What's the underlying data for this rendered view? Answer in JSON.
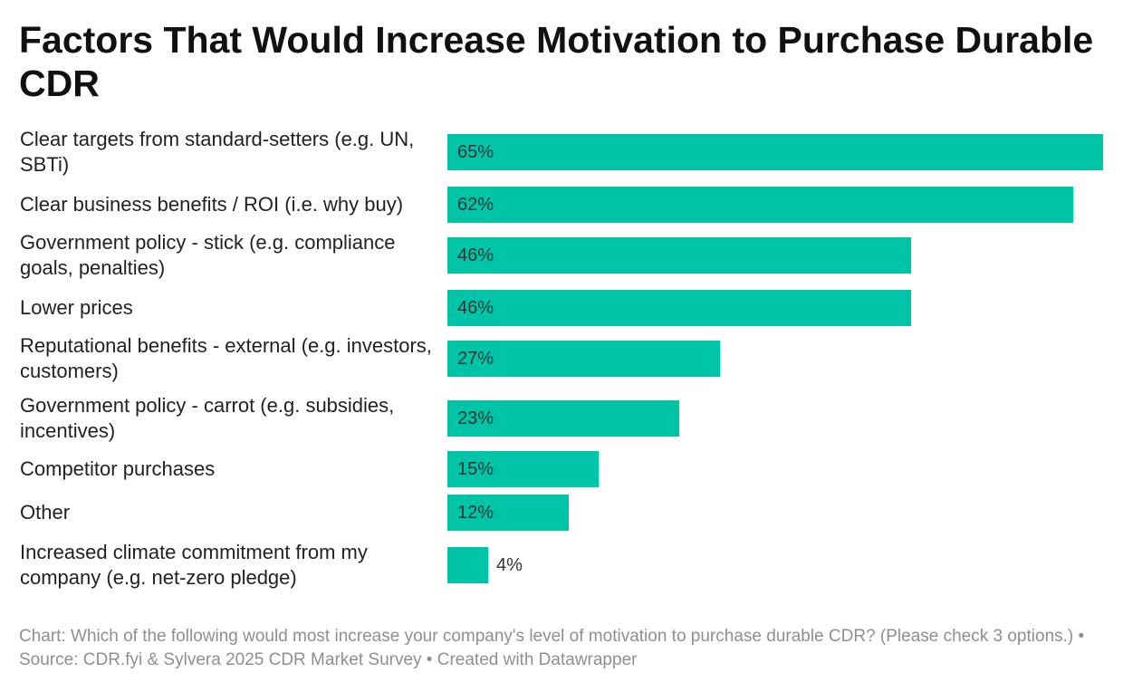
{
  "chart_data": {
    "type": "bar",
    "orientation": "horizontal",
    "title": "Factors That Would Increase Motivation to Purchase Durable CDR",
    "categories": [
      "Clear targets from standard-setters (e.g. UN, SBTi)",
      "Clear business benefits / ROI (i.e. why buy)",
      "Government policy - stick (e.g. compliance goals, penalties)",
      "Lower prices",
      "Reputational benefits - external (e.g. investors, customers)",
      "Government policy - carrot (e.g. subsidies, incentives)",
      "Competitor purchases",
      "Other",
      "Increased climate commitment from my company (e.g. net-zero pledge)"
    ],
    "values": [
      65,
      62,
      46,
      46,
      27,
      23,
      15,
      12,
      4
    ],
    "labels": [
      "65%",
      "62%",
      "46%",
      "46%",
      "27%",
      "23%",
      "15%",
      "12%",
      "4%"
    ],
    "unit": "%",
    "xlim": [
      0,
      65
    ],
    "xlabel": "",
    "ylabel": "",
    "grid": false,
    "bar_color": "#00c4a7",
    "footer": "Chart: Which of the following would most increase your company's level of motivation to purchase durable CDR? (Please check 3 options.) • Source: CDR.fyi & Sylvera 2025 CDR Market Survey • Created with Datawrapper"
  }
}
